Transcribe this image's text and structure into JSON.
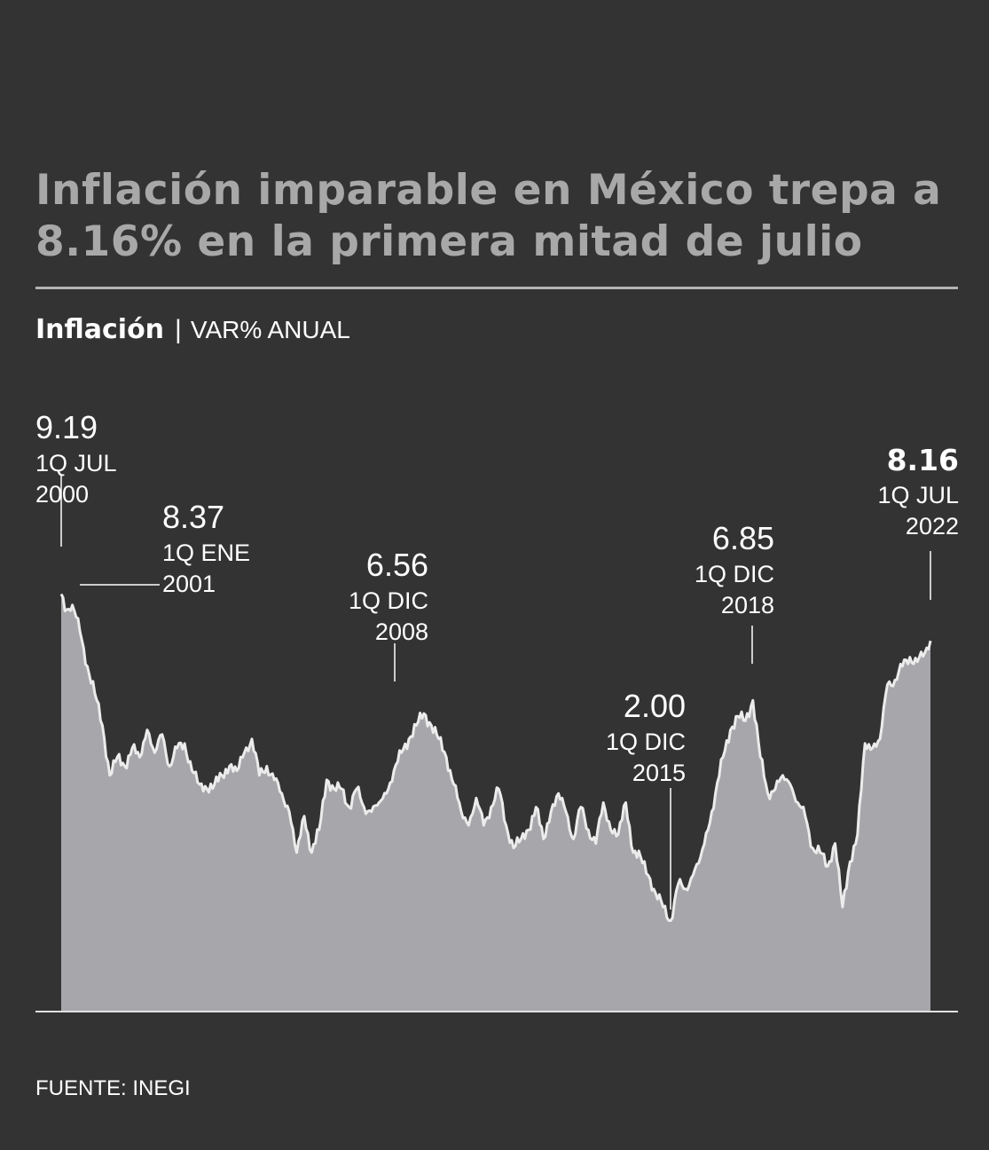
{
  "title": "Inflación imparable en México trepa a 8.16% en la primera mitad de julio",
  "subtitle": {
    "main": "Inflación",
    "separator": "|",
    "unit": "VAR% ANUAL"
  },
  "source": "FUENTE: INEGI",
  "colors": {
    "background": "#333333",
    "area": "#a7a7ab",
    "line": "#ececec",
    "title": "#a8a8a8",
    "text": "#ffffff"
  },
  "chart_data": {
    "type": "area",
    "frequency": "quincenal",
    "x_start": "1Q JUL 2000",
    "x_end": "1Q JUL 2022",
    "ylabel": "VAR% ANUAL",
    "ylim": [
      0,
      10
    ],
    "grid": false,
    "anchors": [
      {
        "x": 0,
        "y": 9.19
      },
      {
        "x": 3,
        "y": 8.85
      },
      {
        "x": 6,
        "y": 8.95
      },
      {
        "x": 10,
        "y": 8.37
      },
      {
        "x": 14,
        "y": 7.6
      },
      {
        "x": 18,
        "y": 7.0
      },
      {
        "x": 22,
        "y": 6.3
      },
      {
        "x": 26,
        "y": 5.2
      },
      {
        "x": 30,
        "y": 5.6
      },
      {
        "x": 34,
        "y": 5.4
      },
      {
        "x": 38,
        "y": 5.8
      },
      {
        "x": 42,
        "y": 5.6
      },
      {
        "x": 46,
        "y": 6.2
      },
      {
        "x": 50,
        "y": 5.7
      },
      {
        "x": 54,
        "y": 6.1
      },
      {
        "x": 58,
        "y": 5.4
      },
      {
        "x": 62,
        "y": 5.8
      },
      {
        "x": 66,
        "y": 5.9
      },
      {
        "x": 70,
        "y": 5.3
      },
      {
        "x": 74,
        "y": 5.0
      },
      {
        "x": 78,
        "y": 4.9
      },
      {
        "x": 82,
        "y": 5.0
      },
      {
        "x": 86,
        "y": 5.2
      },
      {
        "x": 90,
        "y": 5.4
      },
      {
        "x": 94,
        "y": 5.3
      },
      {
        "x": 98,
        "y": 5.7
      },
      {
        "x": 102,
        "y": 6.0
      },
      {
        "x": 106,
        "y": 5.2
      },
      {
        "x": 110,
        "y": 5.4
      },
      {
        "x": 114,
        "y": 5.1
      },
      {
        "x": 118,
        "y": 4.8
      },
      {
        "x": 122,
        "y": 4.4
      },
      {
        "x": 126,
        "y": 3.5
      },
      {
        "x": 130,
        "y": 4.3
      },
      {
        "x": 134,
        "y": 3.5
      },
      {
        "x": 138,
        "y": 4.0
      },
      {
        "x": 142,
        "y": 5.1
      },
      {
        "x": 146,
        "y": 4.9
      },
      {
        "x": 150,
        "y": 4.9
      },
      {
        "x": 154,
        "y": 4.5
      },
      {
        "x": 158,
        "y": 4.9
      },
      {
        "x": 162,
        "y": 4.5
      },
      {
        "x": 166,
        "y": 4.4
      },
      {
        "x": 170,
        "y": 4.6
      },
      {
        "x": 174,
        "y": 4.8
      },
      {
        "x": 178,
        "y": 5.3
      },
      {
        "x": 182,
        "y": 5.7
      },
      {
        "x": 186,
        "y": 6.0
      },
      {
        "x": 190,
        "y": 6.3
      },
      {
        "x": 194,
        "y": 6.56
      },
      {
        "x": 198,
        "y": 6.3
      },
      {
        "x": 202,
        "y": 6.0
      },
      {
        "x": 206,
        "y": 5.6
      },
      {
        "x": 210,
        "y": 5.0
      },
      {
        "x": 214,
        "y": 4.4
      },
      {
        "x": 218,
        "y": 4.1
      },
      {
        "x": 222,
        "y": 4.7
      },
      {
        "x": 226,
        "y": 4.1
      },
      {
        "x": 230,
        "y": 4.5
      },
      {
        "x": 234,
        "y": 4.9
      },
      {
        "x": 238,
        "y": 4.1
      },
      {
        "x": 242,
        "y": 3.6
      },
      {
        "x": 246,
        "y": 3.8
      },
      {
        "x": 250,
        "y": 4.0
      },
      {
        "x": 254,
        "y": 4.5
      },
      {
        "x": 258,
        "y": 3.8
      },
      {
        "x": 262,
        "y": 4.4
      },
      {
        "x": 266,
        "y": 4.8
      },
      {
        "x": 270,
        "y": 4.4
      },
      {
        "x": 274,
        "y": 3.8
      },
      {
        "x": 278,
        "y": 4.5
      },
      {
        "x": 282,
        "y": 4.0
      },
      {
        "x": 286,
        "y": 3.7
      },
      {
        "x": 290,
        "y": 4.6
      },
      {
        "x": 294,
        "y": 4.0
      },
      {
        "x": 298,
        "y": 3.9
      },
      {
        "x": 302,
        "y": 4.6
      },
      {
        "x": 306,
        "y": 3.5
      },
      {
        "x": 310,
        "y": 3.4
      },
      {
        "x": 314,
        "y": 3.0
      },
      {
        "x": 318,
        "y": 2.6
      },
      {
        "x": 322,
        "y": 2.3
      },
      {
        "x": 326,
        "y": 2.0
      },
      {
        "x": 330,
        "y": 2.8
      },
      {
        "x": 334,
        "y": 2.7
      },
      {
        "x": 338,
        "y": 3.0
      },
      {
        "x": 342,
        "y": 3.4
      },
      {
        "x": 346,
        "y": 4.0
      },
      {
        "x": 350,
        "y": 4.8
      },
      {
        "x": 354,
        "y": 5.6
      },
      {
        "x": 358,
        "y": 6.2
      },
      {
        "x": 362,
        "y": 6.5
      },
      {
        "x": 366,
        "y": 6.4
      },
      {
        "x": 370,
        "y": 6.85
      },
      {
        "x": 374,
        "y": 5.6
      },
      {
        "x": 378,
        "y": 4.8
      },
      {
        "x": 382,
        "y": 4.9
      },
      {
        "x": 386,
        "y": 5.2
      },
      {
        "x": 390,
        "y": 5.0
      },
      {
        "x": 394,
        "y": 4.6
      },
      {
        "x": 398,
        "y": 4.3
      },
      {
        "x": 402,
        "y": 3.6
      },
      {
        "x": 406,
        "y": 3.5
      },
      {
        "x": 410,
        "y": 3.2
      },
      {
        "x": 414,
        "y": 3.7
      },
      {
        "x": 418,
        "y": 2.3
      },
      {
        "x": 422,
        "y": 3.3
      },
      {
        "x": 426,
        "y": 3.9
      },
      {
        "x": 430,
        "y": 5.9
      },
      {
        "x": 434,
        "y": 5.8
      },
      {
        "x": 438,
        "y": 6.0
      },
      {
        "x": 442,
        "y": 7.2
      },
      {
        "x": 446,
        "y": 7.3
      },
      {
        "x": 450,
        "y": 7.6
      },
      {
        "x": 454,
        "y": 7.8
      },
      {
        "x": 458,
        "y": 7.7
      },
      {
        "x": 462,
        "y": 7.9
      },
      {
        "x": 465,
        "y": 8.16
      }
    ],
    "annotations": [
      {
        "value": "9.19",
        "period": "1Q JUL",
        "year": "2000",
        "bold": false
      },
      {
        "value": "8.37",
        "period": "1Q ENE",
        "year": "2001",
        "bold": false
      },
      {
        "value": "6.56",
        "period": "1Q DIC",
        "year": "2008",
        "bold": false
      },
      {
        "value": "2.00",
        "period": "1Q DIC",
        "year": "2015",
        "bold": false
      },
      {
        "value": "6.85",
        "period": "1Q DIC",
        "year": "2018",
        "bold": false
      },
      {
        "value": "8.16",
        "period": "1Q JUL",
        "year": "2022",
        "bold": true
      }
    ]
  }
}
